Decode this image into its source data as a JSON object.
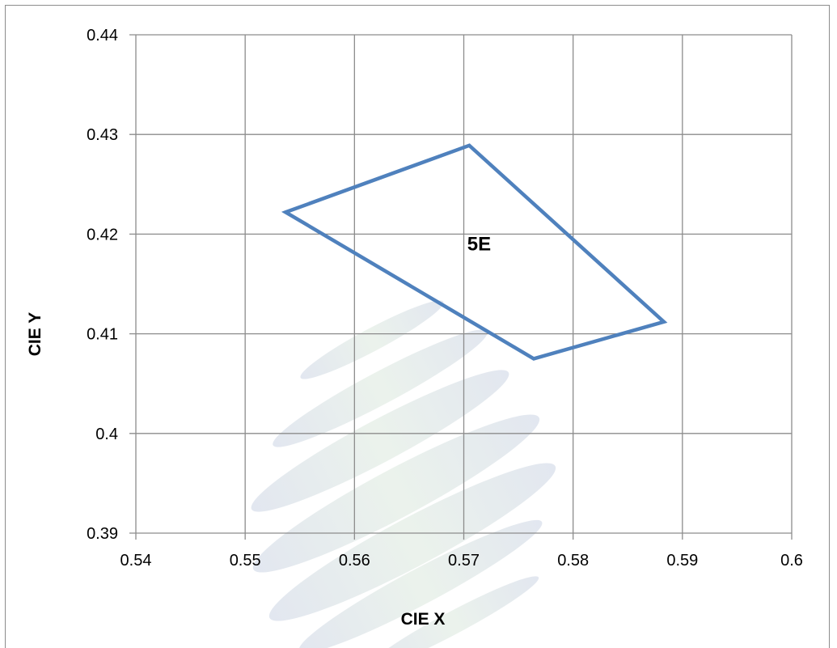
{
  "chart_data": {
    "type": "line",
    "title": "",
    "xlabel": "CIE  X",
    "ylabel": "CIE  Y",
    "xlim": [
      0.54,
      0.6
    ],
    "ylim": [
      0.39,
      0.44
    ],
    "x_ticks": [
      "0.54",
      "0.55",
      "0.56",
      "0.57",
      "0.58",
      "0.59",
      "0.6"
    ],
    "y_ticks": [
      "0.39",
      "0.4",
      "0.41",
      "0.42",
      "0.43",
      "0.44"
    ],
    "grid": true,
    "legend": "none",
    "annotations": [
      {
        "text": "5E",
        "x": 0.5714,
        "y": 0.419
      }
    ],
    "series": [
      {
        "color": "#4f81bd",
        "closed": true,
        "points": [
          {
            "x": 0.5537,
            "y": 0.4222
          },
          {
            "x": 0.5705,
            "y": 0.4289
          },
          {
            "x": 0.5883,
            "y": 0.4112
          },
          {
            "x": 0.5764,
            "y": 0.4075
          }
        ]
      }
    ]
  }
}
